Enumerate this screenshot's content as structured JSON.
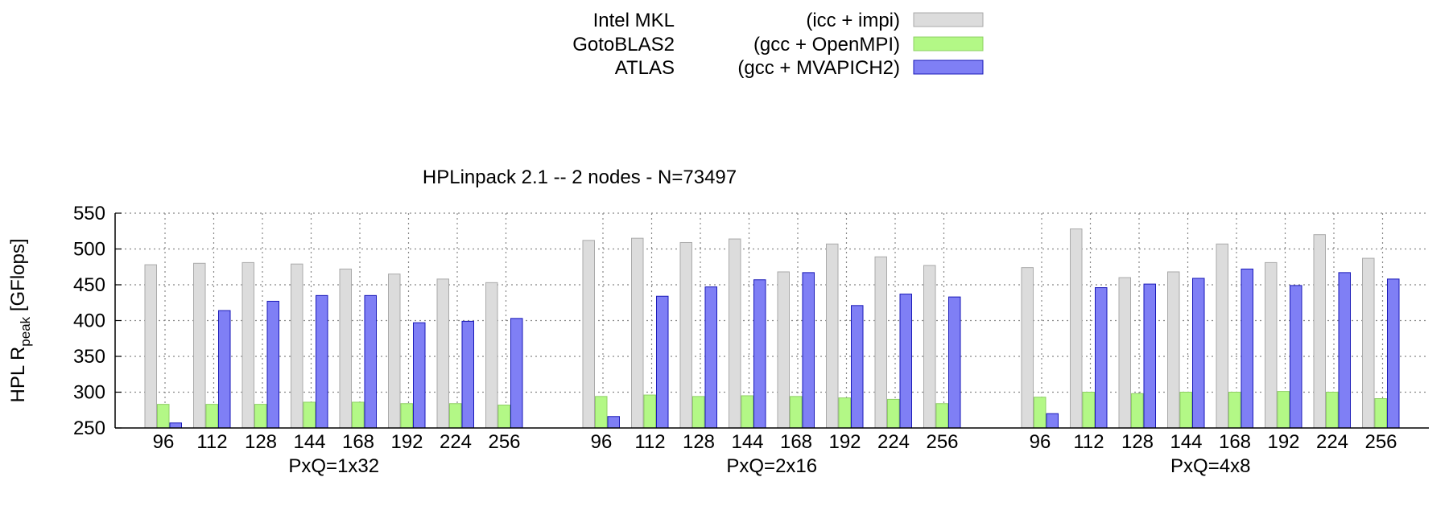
{
  "chart_data": {
    "type": "bar",
    "title": "HPLinpack 2.1  -- 2 nodes - N=73497",
    "ylabel_prefix": "HPL R",
    "ylabel_sub": "peak",
    "ylabel_suffix": " [GFlops]",
    "ylim": [
      250,
      550
    ],
    "yticks": [
      250,
      300,
      350,
      400,
      450,
      500,
      550
    ],
    "grid": true,
    "legend_position": "top-center",
    "series": [
      {
        "name": "Intel MKL",
        "toolchain": "(icc + impi)",
        "color": "#dcdcdc",
        "stroke": "#aaaaaa"
      },
      {
        "name": "GotoBLAS2",
        "toolchain": "(gcc + OpenMPI)",
        "color": "#b3f886",
        "stroke": "#8fd064"
      },
      {
        "name": "ATLAS",
        "toolchain": "(gcc + MVAPICH2)",
        "color": "#7f7ff5",
        "stroke": "#1a1ab8"
      }
    ],
    "groups": [
      {
        "label": "PxQ=1x32",
        "categories": [
          "96",
          "112",
          "128",
          "144",
          "168",
          "192",
          "224",
          "256"
        ],
        "values": [
          [
            478,
            480,
            481,
            479,
            472,
            465,
            458,
            453
          ],
          [
            283,
            283,
            283,
            286,
            286,
            284,
            284,
            282
          ],
          [
            257,
            414,
            427,
            435,
            435,
            397,
            399,
            403
          ]
        ]
      },
      {
        "label": "PxQ=2x16",
        "categories": [
          "96",
          "112",
          "128",
          "144",
          "168",
          "192",
          "224",
          "256"
        ],
        "values": [
          [
            512,
            515,
            509,
            514,
            468,
            507,
            489,
            477
          ],
          [
            294,
            296,
            294,
            295,
            294,
            292,
            290,
            284
          ],
          [
            266,
            434,
            447,
            457,
            467,
            421,
            437,
            433
          ]
        ]
      },
      {
        "label": "PxQ=4x8",
        "categories": [
          "96",
          "112",
          "128",
          "144",
          "168",
          "192",
          "224",
          "256"
        ],
        "values": [
          [
            474,
            528,
            460,
            468,
            507,
            481,
            520,
            487
          ],
          [
            293,
            300,
            298,
            300,
            300,
            301,
            300,
            291
          ],
          [
            270,
            446,
            451,
            459,
            472,
            449,
            467,
            458
          ]
        ]
      }
    ]
  }
}
